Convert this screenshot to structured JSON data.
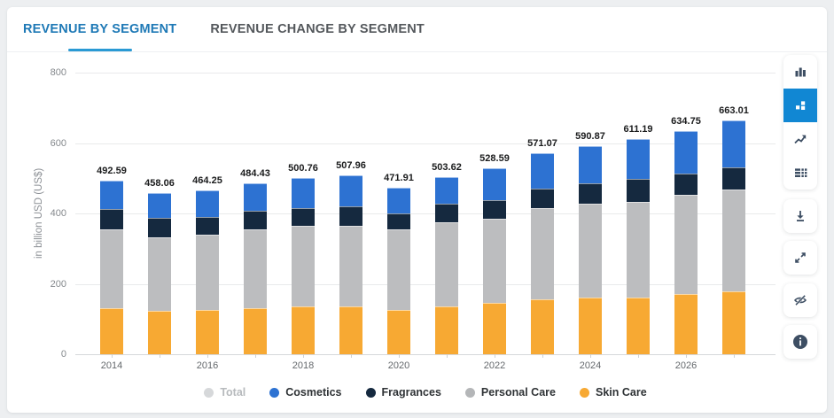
{
  "tabs": [
    {
      "label": "REVENUE BY SEGMENT",
      "active": true
    },
    {
      "label": "REVENUE CHANGE BY SEGMENT",
      "active": false
    }
  ],
  "chart_data": {
    "type": "bar",
    "stacked": true,
    "ylabel": "in billion USD (US$)",
    "ylim": [
      0,
      800
    ],
    "yticks": [
      0,
      200,
      400,
      600,
      800
    ],
    "grid": true,
    "legend_position": "bottom",
    "categories": [
      "2014",
      "2015",
      "2016",
      "2017",
      "2018",
      "2019",
      "2020",
      "2021",
      "2022",
      "2023",
      "2024",
      "2025",
      "2026",
      "2027"
    ],
    "x_tick_labels": [
      "2014",
      "2016",
      "2018",
      "2020",
      "2022",
      "2024",
      "2026"
    ],
    "totals": [
      492.59,
      458.06,
      464.25,
      484.43,
      500.76,
      507.96,
      471.91,
      503.62,
      528.59,
      571.07,
      590.87,
      611.19,
      634.75,
      663.01
    ],
    "series": [
      {
        "name": "Skin Care",
        "color": "#f7a933",
        "values": [
          131,
          124,
          126,
          132,
          135,
          135,
          127,
          135,
          145,
          156,
          160,
          161,
          171,
          179
        ]
      },
      {
        "name": "Personal Care",
        "color": "#bcbdbf",
        "values": [
          225,
          208,
          214,
          222,
          230,
          230,
          227,
          240,
          240,
          259,
          268,
          273,
          281,
          288
        ]
      },
      {
        "name": "Fragrances",
        "color": "#15293f",
        "values": [
          56,
          56,
          51,
          54,
          51,
          54,
          47,
          52,
          53,
          56,
          57,
          63,
          61,
          65
        ]
      },
      {
        "name": "Cosmetics",
        "color": "#2d72d2",
        "values": [
          80.59,
          70.06,
          73.25,
          76.43,
          84.76,
          88.96,
          70.91,
          76.62,
          90.59,
          100.07,
          105.87,
          114.19,
          121.75,
          131.01
        ]
      }
    ]
  },
  "legend": {
    "items": [
      {
        "label": "Total",
        "color": "#d6d8da",
        "muted": true
      },
      {
        "label": "Cosmetics",
        "color": "#2d72d2",
        "muted": false
      },
      {
        "label": "Fragrances",
        "color": "#15293f",
        "muted": false
      },
      {
        "label": "Personal Care",
        "color": "#b4b6b8",
        "muted": false
      },
      {
        "label": "Skin Care",
        "color": "#f7a933",
        "muted": false
      }
    ]
  },
  "colors": {
    "accent_blue": "#1187d3",
    "tab_active": "#1e79b6",
    "icon": "#3d4e63",
    "page_bg": "#edeff1"
  }
}
